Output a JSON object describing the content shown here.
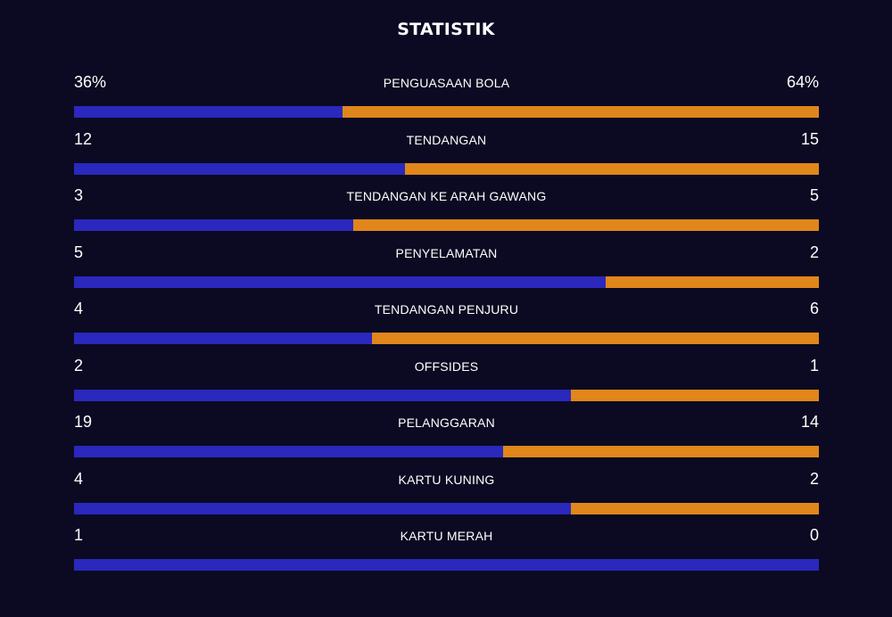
{
  "title": "STATISTIK",
  "colors": {
    "background": "#0b0a22",
    "home": "#2a28bd",
    "away": "#e0861a"
  },
  "stats": [
    {
      "label": "PENGUASAAN BOLA",
      "home": "36%",
      "away": "64%",
      "home_value": 36,
      "away_value": 64
    },
    {
      "label": "TENDANGAN",
      "home": "12",
      "away": "15",
      "home_value": 12,
      "away_value": 15
    },
    {
      "label": "TENDANGAN KE ARAH GAWANG",
      "home": "3",
      "away": "5",
      "home_value": 3,
      "away_value": 5
    },
    {
      "label": "PENYELAMATAN",
      "home": "5",
      "away": "2",
      "home_value": 5,
      "away_value": 2
    },
    {
      "label": "TENDANGAN PENJURU",
      "home": "4",
      "away": "6",
      "home_value": 4,
      "away_value": 6
    },
    {
      "label": "OFFSIDES",
      "home": "2",
      "away": "1",
      "home_value": 2,
      "away_value": 1
    },
    {
      "label": "PELANGGARAN",
      "home": "19",
      "away": "14",
      "home_value": 19,
      "away_value": 14
    },
    {
      "label": "KARTU KUNING",
      "home": "4",
      "away": "2",
      "home_value": 4,
      "away_value": 2
    },
    {
      "label": "KARTU MERAH",
      "home": "1",
      "away": "0",
      "home_value": 1,
      "away_value": 0
    }
  ]
}
